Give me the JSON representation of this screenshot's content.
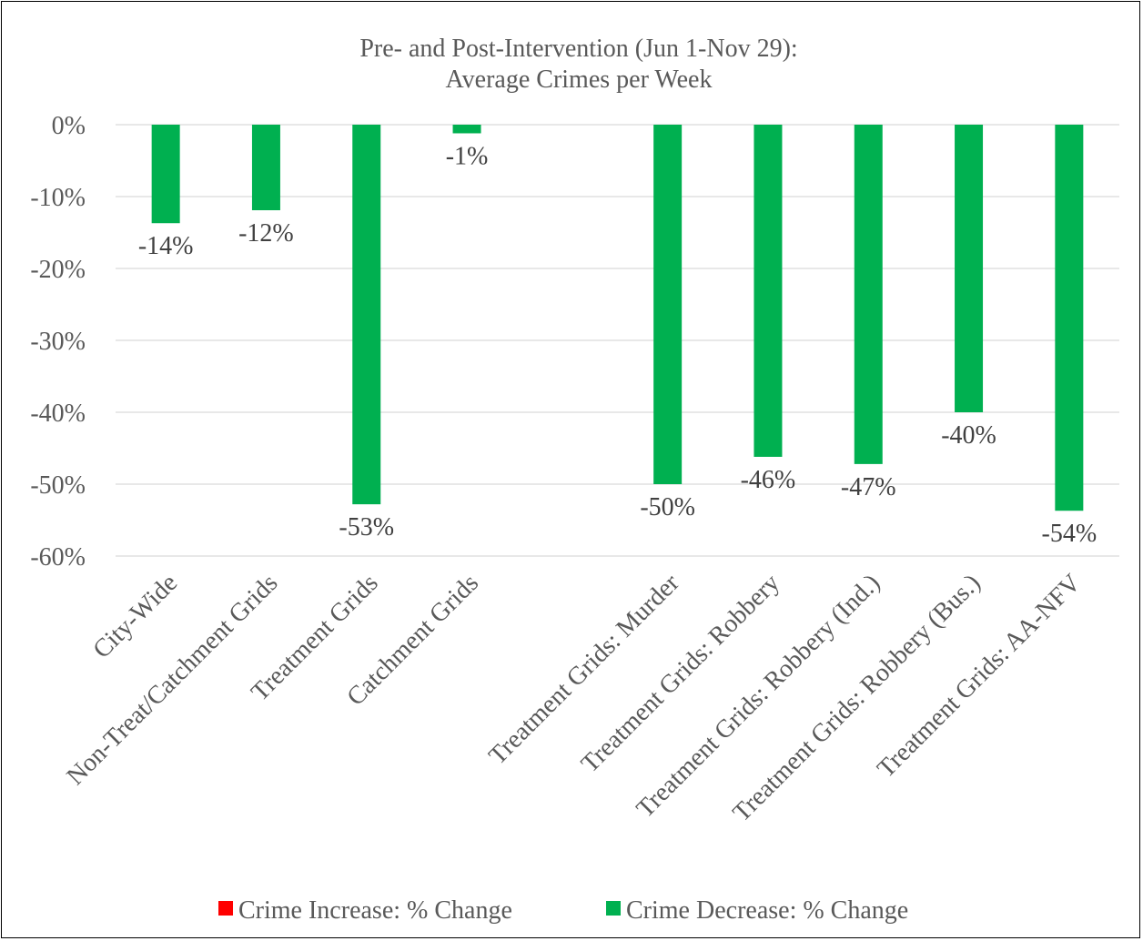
{
  "chart_data": {
    "type": "bar",
    "title": [
      "Pre- and Post-Intervention (Jun 1-Nov 29):",
      "Average Crimes per Week"
    ],
    "categories": [
      "City-Wide",
      "Non-Treat/Catchment Grids",
      "Treatment Grids",
      "Catchment Grids",
      "",
      "Treatment Grids: Murder",
      "Treatment Grids: Robbery",
      "Treatment Grids: Robbery (Ind.)",
      "Treatment Grids: Robbery (Bus.)",
      "Treatment Grids: AA-NFV"
    ],
    "series": [
      {
        "name": "Crime Increase: % Change",
        "color": "#ff0000",
        "values": [
          null,
          null,
          null,
          null,
          null,
          null,
          null,
          null,
          null,
          null
        ]
      },
      {
        "name": "Crime Decrease: % Change",
        "color": "#00b050",
        "values": [
          -13.7,
          -11.9,
          -52.8,
          -1.2,
          null,
          -50.0,
          -46.2,
          -47.2,
          -40.0,
          -53.7
        ]
      }
    ],
    "data_labels": [
      "-14%",
      "-12%",
      "-53%",
      "-1%",
      "",
      "-50%",
      "-46%",
      "-47%",
      "-40%",
      "-54%"
    ],
    "y_ticks": [
      0,
      -10,
      -20,
      -30,
      -40,
      -50,
      -60
    ],
    "y_tick_labels": [
      "0%",
      "-10%",
      "-20%",
      "-30%",
      "-40%",
      "-50%",
      "-60%"
    ],
    "ylim": [
      -60,
      0
    ],
    "xlabel": "",
    "ylabel": "",
    "grid": true,
    "legend_position": "bottom"
  }
}
